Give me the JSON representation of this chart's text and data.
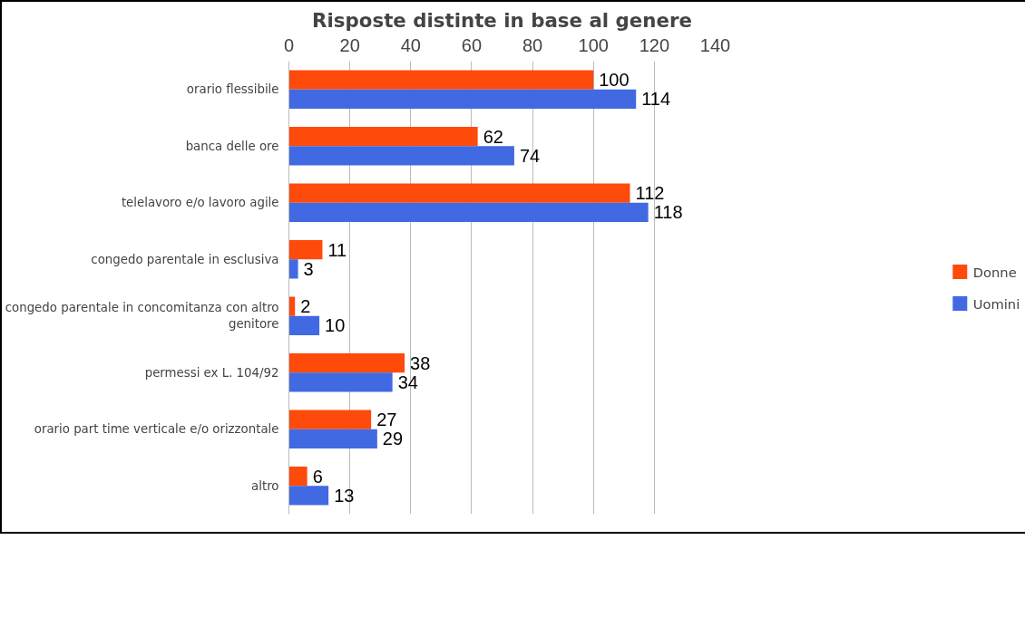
{
  "chart_data": {
    "type": "bar",
    "orientation": "horizontal",
    "title": "Risposte distinte in base al genere",
    "categories": [
      "orario flessibile",
      "banca delle ore",
      "telelavoro e/o lavoro agile",
      "congedo parentale in esclusiva",
      "congedo parentale in concomitanza con altro genitore",
      "permessi ex L. 104/92",
      "orario part time verticale e/o orizzontale",
      "altro"
    ],
    "series": [
      {
        "name": "Donne",
        "color": "#fe4a0a",
        "values": [
          100,
          62,
          112,
          11,
          2,
          38,
          27,
          6
        ]
      },
      {
        "name": "Uomini",
        "color": "#4169e1",
        "values": [
          114,
          74,
          118,
          3,
          10,
          34,
          29,
          13
        ]
      }
    ],
    "xlim": [
      0,
      140
    ],
    "xticks": [
      0,
      20,
      40,
      60,
      80,
      100,
      120,
      140
    ],
    "grid": "x",
    "legend": "right",
    "data_labels": true
  }
}
